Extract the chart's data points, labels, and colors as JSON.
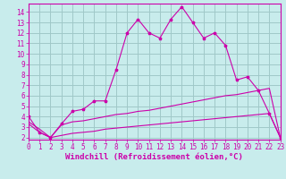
{
  "xlabel": "Windchill (Refroidissement éolien,°C)",
  "ylabel": "",
  "background_color": "#c8ecec",
  "grid_color": "#a0c8c8",
  "line_color": "#cc00aa",
  "x": [
    0,
    1,
    2,
    3,
    4,
    5,
    6,
    7,
    8,
    9,
    10,
    11,
    12,
    13,
    14,
    15,
    16,
    17,
    18,
    19,
    20,
    21,
    22,
    23
  ],
  "line1": [
    4.0,
    2.5,
    2.0,
    3.3,
    4.5,
    4.7,
    5.5,
    5.5,
    8.5,
    12.0,
    13.3,
    12.0,
    11.5,
    13.3,
    14.5,
    13.0,
    11.5,
    12.0,
    10.8,
    7.5,
    7.8,
    6.5,
    4.3,
    2.0
  ],
  "line2": [
    3.5,
    2.8,
    2.0,
    3.2,
    3.5,
    3.6,
    3.8,
    4.0,
    4.2,
    4.3,
    4.5,
    4.6,
    4.8,
    5.0,
    5.2,
    5.4,
    5.6,
    5.8,
    6.0,
    6.1,
    6.3,
    6.5,
    6.7,
    2.0
  ],
  "line3": [
    3.3,
    2.5,
    2.0,
    2.2,
    2.4,
    2.5,
    2.6,
    2.8,
    2.9,
    3.0,
    3.1,
    3.2,
    3.3,
    3.4,
    3.5,
    3.6,
    3.7,
    3.8,
    3.9,
    4.0,
    4.1,
    4.2,
    4.3,
    2.0
  ],
  "xlim": [
    0,
    23
  ],
  "ylim": [
    1.8,
    14.8
  ],
  "yticks": [
    2,
    3,
    4,
    5,
    6,
    7,
    8,
    9,
    10,
    11,
    12,
    13,
    14
  ],
  "xticks": [
    0,
    1,
    2,
    3,
    4,
    5,
    6,
    7,
    8,
    9,
    10,
    11,
    12,
    13,
    14,
    15,
    16,
    17,
    18,
    19,
    20,
    21,
    22,
    23
  ],
  "tick_fontsize": 5.5,
  "xlabel_fontsize": 6.5
}
